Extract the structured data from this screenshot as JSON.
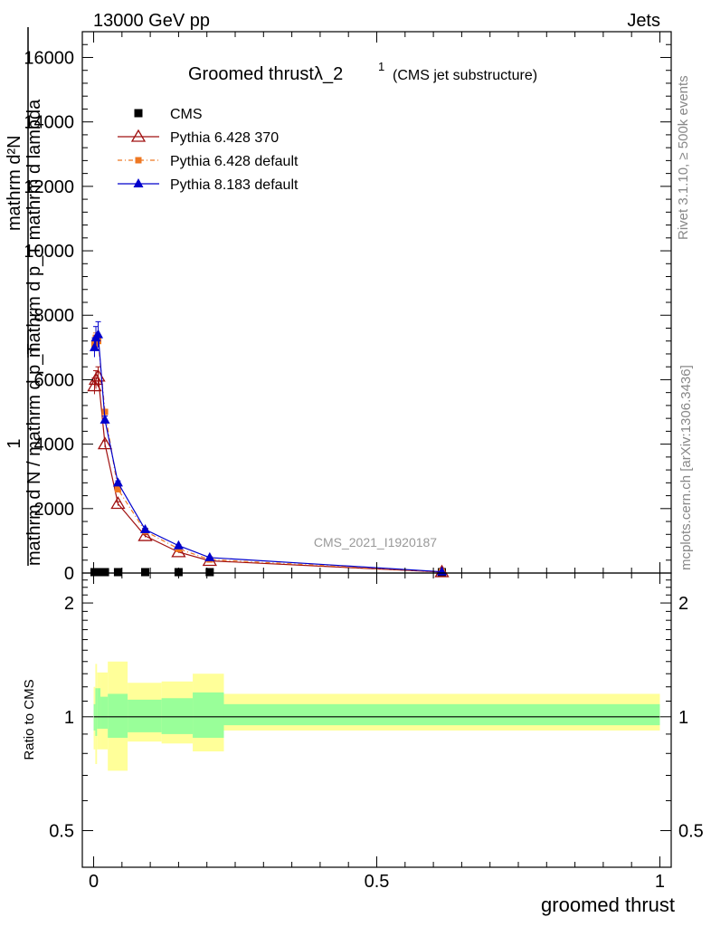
{
  "header": {
    "energy_label": "13000 GeV pp",
    "process_label": "Jets"
  },
  "side_labels": {
    "rivet": "Rivet 3.1.10, ≥ 500k events",
    "mcplots": "mcplots.cern.ch [arXiv:1306.3436]"
  },
  "watermark": "CMS_2021_I1920187",
  "chart_data": {
    "type": "line",
    "title_main": "Groomed thrustλ_2",
    "title_sup": "1",
    "title_sub": "(CMS jet substructure)",
    "xlabel": "groomed thrust",
    "ylabel_numerator": "mathrm d²N",
    "ylabel_denominator": "mathrm d p_T mathrm d lambda",
    "ylabel_prefix_num": "1",
    "ylabel_prefix_den": "mathrm d N / mathrm d p_T",
    "ratio_ylabel": "Ratio to CMS",
    "xlim": [
      -0.02,
      1.02
    ],
    "ylim": [
      0,
      16800
    ],
    "ratio_ylim": [
      0.4,
      2.4
    ],
    "x_ticks": [
      {
        "value": 0,
        "label": "0"
      },
      {
        "value": 0.5,
        "label": "0.5"
      },
      {
        "value": 1,
        "label": "1"
      }
    ],
    "y_ticks": [
      {
        "value": 0,
        "label": "0"
      },
      {
        "value": 2000,
        "label": "2000"
      },
      {
        "value": 4000,
        "label": "4000"
      },
      {
        "value": 6000,
        "label": "6000"
      },
      {
        "value": 8000,
        "label": "8000"
      },
      {
        "value": 10000,
        "label": "10000"
      },
      {
        "value": 12000,
        "label": "12000"
      },
      {
        "value": 14000,
        "label": "14000"
      },
      {
        "value": 16000,
        "label": "16000"
      }
    ],
    "ratio_y_ticks": [
      {
        "value": 0.5,
        "label": "0.5"
      },
      {
        "value": 1,
        "label": "1"
      },
      {
        "value": 2,
        "label": "2"
      }
    ],
    "series": [
      {
        "name": "CMS",
        "style": "data",
        "color": "#000000",
        "x": [
          0.0015,
          0.004,
          0.008,
          0.02,
          0.043,
          0.091,
          0.15,
          0.205,
          0.615
        ],
        "values": [
          0,
          0,
          0,
          0,
          0,
          0,
          0,
          0,
          0
        ]
      },
      {
        "name": "Pythia 6.428 370",
        "style": "open-triangle",
        "color": "#a01010",
        "x": [
          0.0015,
          0.004,
          0.008,
          0.02,
          0.043,
          0.091,
          0.15,
          0.205,
          0.615
        ],
        "values": [
          5800,
          6000,
          6100,
          4000,
          2150,
          1150,
          650,
          380,
          30
        ],
        "errors": [
          250,
          280,
          300,
          100,
          60,
          40,
          25,
          20,
          5
        ]
      },
      {
        "name": "Pythia 6.428 default",
        "style": "square-dashed",
        "color": "#ee7722",
        "x": [
          0.0015,
          0.004,
          0.008,
          0.02,
          0.043,
          0.091,
          0.15,
          0.205,
          0.615
        ],
        "values": [
          7100,
          7300,
          7200,
          5000,
          2600,
          1300,
          750,
          420,
          35
        ],
        "errors": [
          150,
          150,
          150,
          80,
          50,
          30,
          20,
          15,
          5
        ]
      },
      {
        "name": "Pythia 8.183 default",
        "style": "filled-triangle",
        "color": "#0000cc",
        "x": [
          0.0015,
          0.004,
          0.008,
          0.02,
          0.043,
          0.091,
          0.15,
          0.205,
          0.615
        ],
        "values": [
          7000,
          7300,
          7400,
          4750,
          2800,
          1350,
          850,
          480,
          40
        ],
        "errors": [
          300,
          350,
          400,
          120,
          60,
          40,
          25,
          20,
          5
        ]
      }
    ],
    "ratio_bands": {
      "bin_edges": [
        0,
        0.003,
        0.006,
        0.012,
        0.025,
        0.06,
        0.12,
        0.175,
        0.23,
        1.0
      ],
      "green_low": [
        0.92,
        0.89,
        0.93,
        0.93,
        0.88,
        0.91,
        0.9,
        0.88,
        0.95
      ],
      "green_high": [
        1.08,
        1.19,
        1.19,
        1.13,
        1.15,
        1.11,
        1.12,
        1.16,
        1.08
      ],
      "yellow_low": [
        0.82,
        0.75,
        0.82,
        0.82,
        0.72,
        0.86,
        0.85,
        0.81,
        0.92
      ],
      "yellow_high": [
        1.2,
        1.38,
        1.31,
        1.31,
        1.4,
        1.23,
        1.24,
        1.3,
        1.15
      ],
      "green_color": "#99ff99",
      "yellow_color": "#ffff99"
    }
  }
}
